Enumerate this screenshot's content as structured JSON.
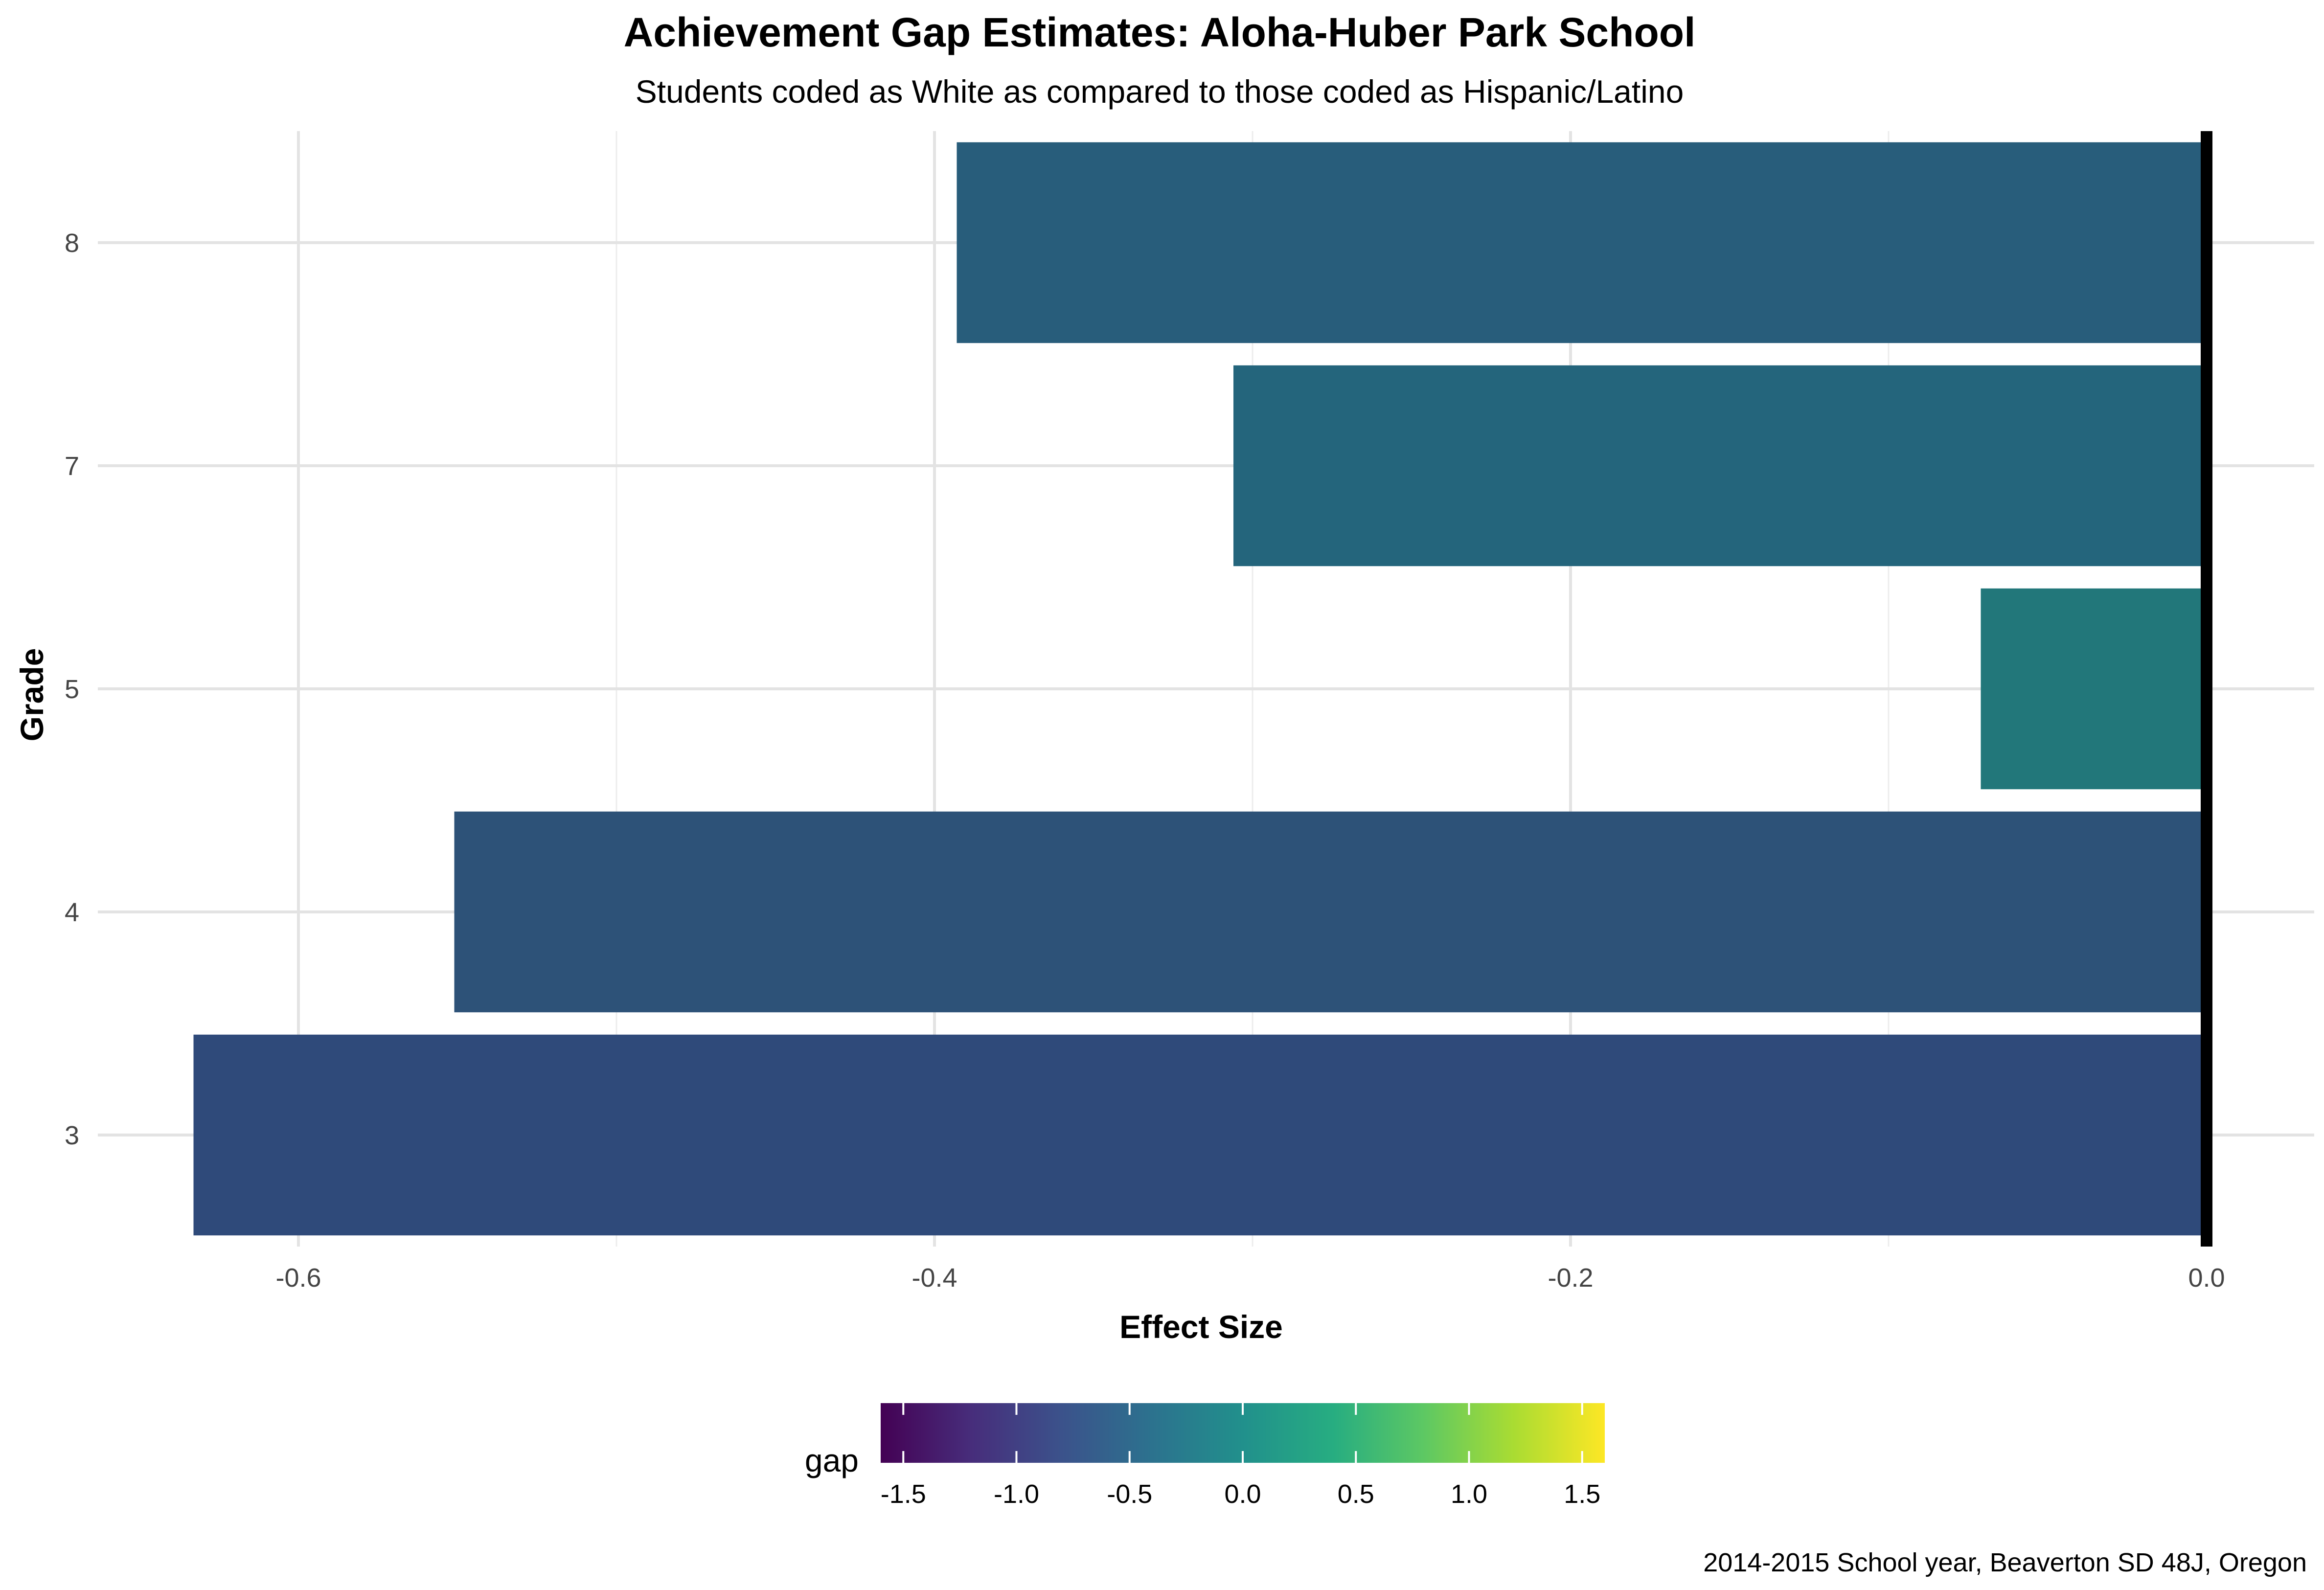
{
  "chart_data": {
    "type": "bar",
    "orientation": "horizontal",
    "title": "Achievement Gap Estimates: Aloha-Huber Park School",
    "subtitle": "Students coded as White as compared to those coded as Hispanic/Latino",
    "xlabel": "Effect Size",
    "ylabel": "Grade",
    "caption": "2014-2015 School year, Beaverton SD 48J, Oregon",
    "categories": [
      "3",
      "4",
      "5",
      "7",
      "8"
    ],
    "values": [
      -0.633,
      -0.551,
      -0.071,
      -0.306,
      -0.393
    ],
    "bar_colors": [
      "#2f4a7a",
      "#2d5278",
      "#22777a",
      "#24657c",
      "#285d7b"
    ],
    "xlim": [
      -0.67,
      0.0
    ],
    "xticks": [
      -0.6,
      -0.4,
      -0.2,
      0.0
    ],
    "xtick_labels": [
      "-0.6",
      "-0.4",
      "-0.2",
      "0.0"
    ],
    "grid": true,
    "reference_line": 0.0,
    "legend": {
      "title": "gap",
      "type": "colorbar",
      "position": "bottom",
      "colormap": "viridis",
      "range": [
        -1.6,
        1.6
      ],
      "ticks": [
        -1.5,
        -1.0,
        -0.5,
        0.0,
        0.5,
        1.0,
        1.5
      ],
      "tick_labels": [
        "-1.5",
        "-1.0",
        "-0.5",
        "0.0",
        "0.5",
        "1.0",
        "1.5"
      ]
    }
  }
}
